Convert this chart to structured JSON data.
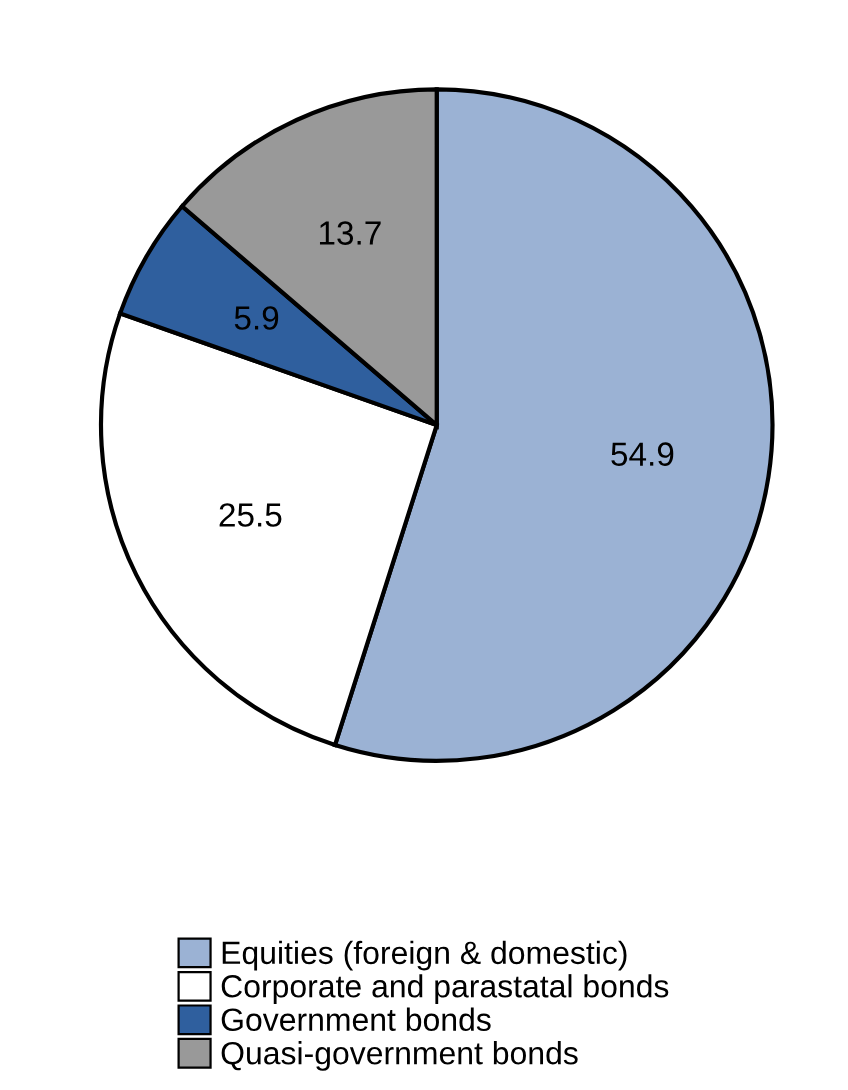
{
  "chart_data": {
    "type": "pie",
    "categories": [
      "Equities (foreign & domestic)",
      "Corporate and parastatal bonds",
      "Government bonds",
      "Quasi-government bonds"
    ],
    "values": [
      54.9,
      25.5,
      5.9,
      13.7
    ],
    "colors": [
      "#9bb2d4",
      "#ffffff",
      "#2f5f9e",
      "#999999"
    ],
    "data_labels": true,
    "legend": "bottom"
  }
}
